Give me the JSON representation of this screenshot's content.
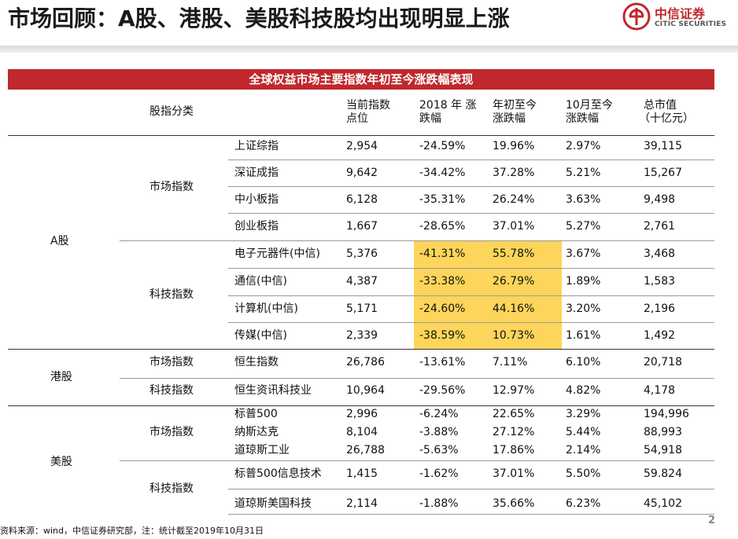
{
  "title": "市场回顾：A股、港股、美股科技股均出现明显上涨",
  "logo": {
    "cn": "中信证券",
    "en": "CITIC SECURITIES"
  },
  "banner": "全球权益市场主要指数年初至今涨跌幅表现",
  "headers": {
    "category": "股指分类",
    "level": [
      "当前指数",
      "点位"
    ],
    "ytd2018": [
      "2018 年 涨",
      "跌幅"
    ],
    "ytd": [
      "年初至今",
      "涨跌幅"
    ],
    "oct": [
      "10月至今",
      "涨跌幅"
    ],
    "mktcap": [
      "总市值",
      "（十亿元）"
    ]
  },
  "markets": [
    "A股",
    "港股",
    "美股"
  ],
  "groups": [
    "市场指数",
    "科技指数",
    "市场指数",
    "科技指数",
    "市场指数",
    "科技指数"
  ],
  "rows": [
    {
      "name": "上证综指",
      "level": "2,954",
      "y2018": "-24.59%",
      "ytd": "19.96%",
      "oct": "2.97%",
      "cap": "39,115",
      "hl": false
    },
    {
      "name": "深证成指",
      "level": "9,642",
      "y2018": "-34.42%",
      "ytd": "37.28%",
      "oct": "5.21%",
      "cap": "15,267",
      "hl": false
    },
    {
      "name": "中小板指",
      "level": "6,128",
      "y2018": "-35.31%",
      "ytd": "26.24%",
      "oct": "3.63%",
      "cap": "9,498",
      "hl": false
    },
    {
      "name": "创业板指",
      "level": "1,667",
      "y2018": "-28.65%",
      "ytd": "37.01%",
      "oct": "5.27%",
      "cap": "2,761",
      "hl": false
    },
    {
      "name": "电子元器件(中信)",
      "level": "5,376",
      "y2018": "-41.31%",
      "ytd": "55.78%",
      "oct": "3.67%",
      "cap": "3,468",
      "hl": true
    },
    {
      "name": "通信(中信)",
      "level": "4,387",
      "y2018": "-33.38%",
      "ytd": "26.79%",
      "oct": "1.89%",
      "cap": "1,583",
      "hl": true
    },
    {
      "name": "计算机(中信)",
      "level": "5,171",
      "y2018": "-24.60%",
      "ytd": "44.16%",
      "oct": "3.20%",
      "cap": "2,196",
      "hl": true
    },
    {
      "name": "传媒(中信)",
      "level": "2,339",
      "y2018": "-38.59%",
      "ytd": "10.73%",
      "oct": "1.61%",
      "cap": "1,492",
      "hl": true
    },
    {
      "name": "恒生指数",
      "level": "26,786",
      "y2018": "-13.61%",
      "ytd": "7.11%",
      "oct": "6.10%",
      "cap": "20,718",
      "hl": false
    },
    {
      "name": "恒生资讯科技业",
      "level": "10,964",
      "y2018": "-29.56%",
      "ytd": "12.97%",
      "oct": "4.82%",
      "cap": "4,178",
      "hl": false
    },
    {
      "name": "标普500",
      "level": "2,996",
      "y2018": "-6.24%",
      "ytd": "22.65%",
      "oct": "3.29%",
      "cap": "194,996",
      "hl": false
    },
    {
      "name": "纳斯达克",
      "level": "8,104",
      "y2018": "-3.88%",
      "ytd": "27.12%",
      "oct": "5.44%",
      "cap": "88,993",
      "hl": false
    },
    {
      "name": "道琼斯工业",
      "level": "26,788",
      "y2018": "-5.63%",
      "ytd": "17.86%",
      "oct": "2.14%",
      "cap": "54,918",
      "hl": false
    },
    {
      "name": "标普500信息技术",
      "level": "1,415",
      "y2018": "-1.62%",
      "ytd": "37.01%",
      "oct": "5.50%",
      "cap": "59.824",
      "hl": false
    },
    {
      "name": "道琼斯美国科技",
      "level": "2,114",
      "y2018": "-1.88%",
      "ytd": "35.66%",
      "oct": "6.23%",
      "cap": "45,102",
      "hl": false
    }
  ],
  "footnote": "资料来源：wind，中信证券研究部，注：统计截至2019年10月31日",
  "page_number": "2",
  "colors": {
    "brand": "#c0282d",
    "highlight": "#fcd55a"
  }
}
